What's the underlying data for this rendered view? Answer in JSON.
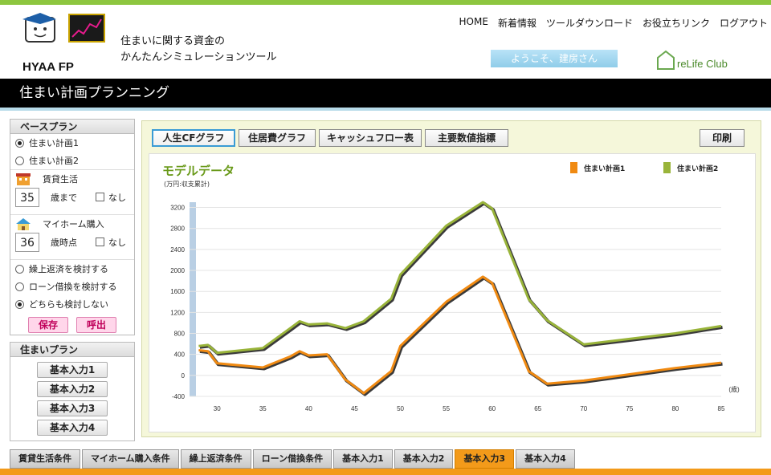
{
  "header": {
    "logo_text": "HYAA FP",
    "tagline_line1": "住まいに関する資金の",
    "tagline_line2": "かんたんシミュレーションツール",
    "nav": [
      "HOME",
      "新着情報",
      "ツールダウンロード",
      "お役立ちリンク",
      "ログアウト"
    ],
    "welcome": "ようこそ、建房さん",
    "partner_logo": "reLife Club"
  },
  "page_title": "住まい計画プランニング",
  "base_plan": {
    "title": "ベースプラン",
    "options": [
      "住まい計画1",
      "住まい計画2"
    ],
    "selected": 0,
    "rental": {
      "label": "賃貸生活",
      "age": "35",
      "unit": "歳まで",
      "none_label": "なし"
    },
    "purchase": {
      "label": "マイホーム購入",
      "age": "36",
      "unit": "歳時点",
      "none_label": "なし"
    },
    "repay_options": [
      "繰上返済を検討する",
      "ローン借換を検討する",
      "どちらも検討しない"
    ],
    "repay_selected": 2,
    "save_label": "保存",
    "load_label": "呼出"
  },
  "housing_plan": {
    "title": "住まいプラン",
    "buttons": [
      "基本入力1",
      "基本入力2",
      "基本入力3",
      "基本入力4"
    ]
  },
  "main": {
    "tabs": [
      "人生CFグラフ",
      "住居費グラフ",
      "キャッシュフロー表",
      "主要数値指標"
    ],
    "active_tab": 0,
    "print_label": "印刷"
  },
  "chart_data": {
    "type": "line",
    "title": "モデルデータ",
    "ylabel": "(万円:収支累計)",
    "xlabel": "(歳)",
    "x": [
      28,
      29,
      30,
      35,
      38,
      39,
      40,
      42,
      44,
      46,
      49,
      50,
      55,
      59,
      60,
      64,
      66,
      70,
      80,
      85
    ],
    "series": [
      {
        "name": "住まい計画1",
        "color": "#f08a12",
        "values": [
          480,
          460,
          230,
          150,
          360,
          460,
          380,
          400,
          -80,
          -340,
          80,
          560,
          1400,
          1880,
          1760,
          80,
          -160,
          -100,
          140,
          240
        ]
      },
      {
        "name": "住まい計画2",
        "color": "#99b43a",
        "values": [
          560,
          580,
          430,
          520,
          900,
          1030,
          970,
          990,
          900,
          1030,
          1460,
          1920,
          2850,
          3300,
          3180,
          1450,
          1050,
          590,
          800,
          940
        ]
      }
    ],
    "xlim": [
      27,
      85
    ],
    "ylim": [
      -400,
      3300
    ],
    "yticks": [
      -400,
      0,
      400,
      800,
      1200,
      1600,
      2000,
      2400,
      2800,
      3200
    ],
    "xticks": [
      30,
      35,
      40,
      45,
      50,
      55,
      60,
      65,
      70,
      75,
      80,
      85
    ],
    "grid": true,
    "legend": "top-right"
  },
  "bottom_tabs": [
    "賃貸生活条件",
    "マイホーム購入条件",
    "繰上返済条件",
    "ローン借換条件",
    "基本入力1",
    "基本入力2",
    "基本入力3",
    "基本入力4"
  ],
  "bottom_active": 6,
  "colors": {
    "accent_green": "#8dc63f",
    "accent_orange": "#f39a1a",
    "title_bar": "#000000"
  }
}
